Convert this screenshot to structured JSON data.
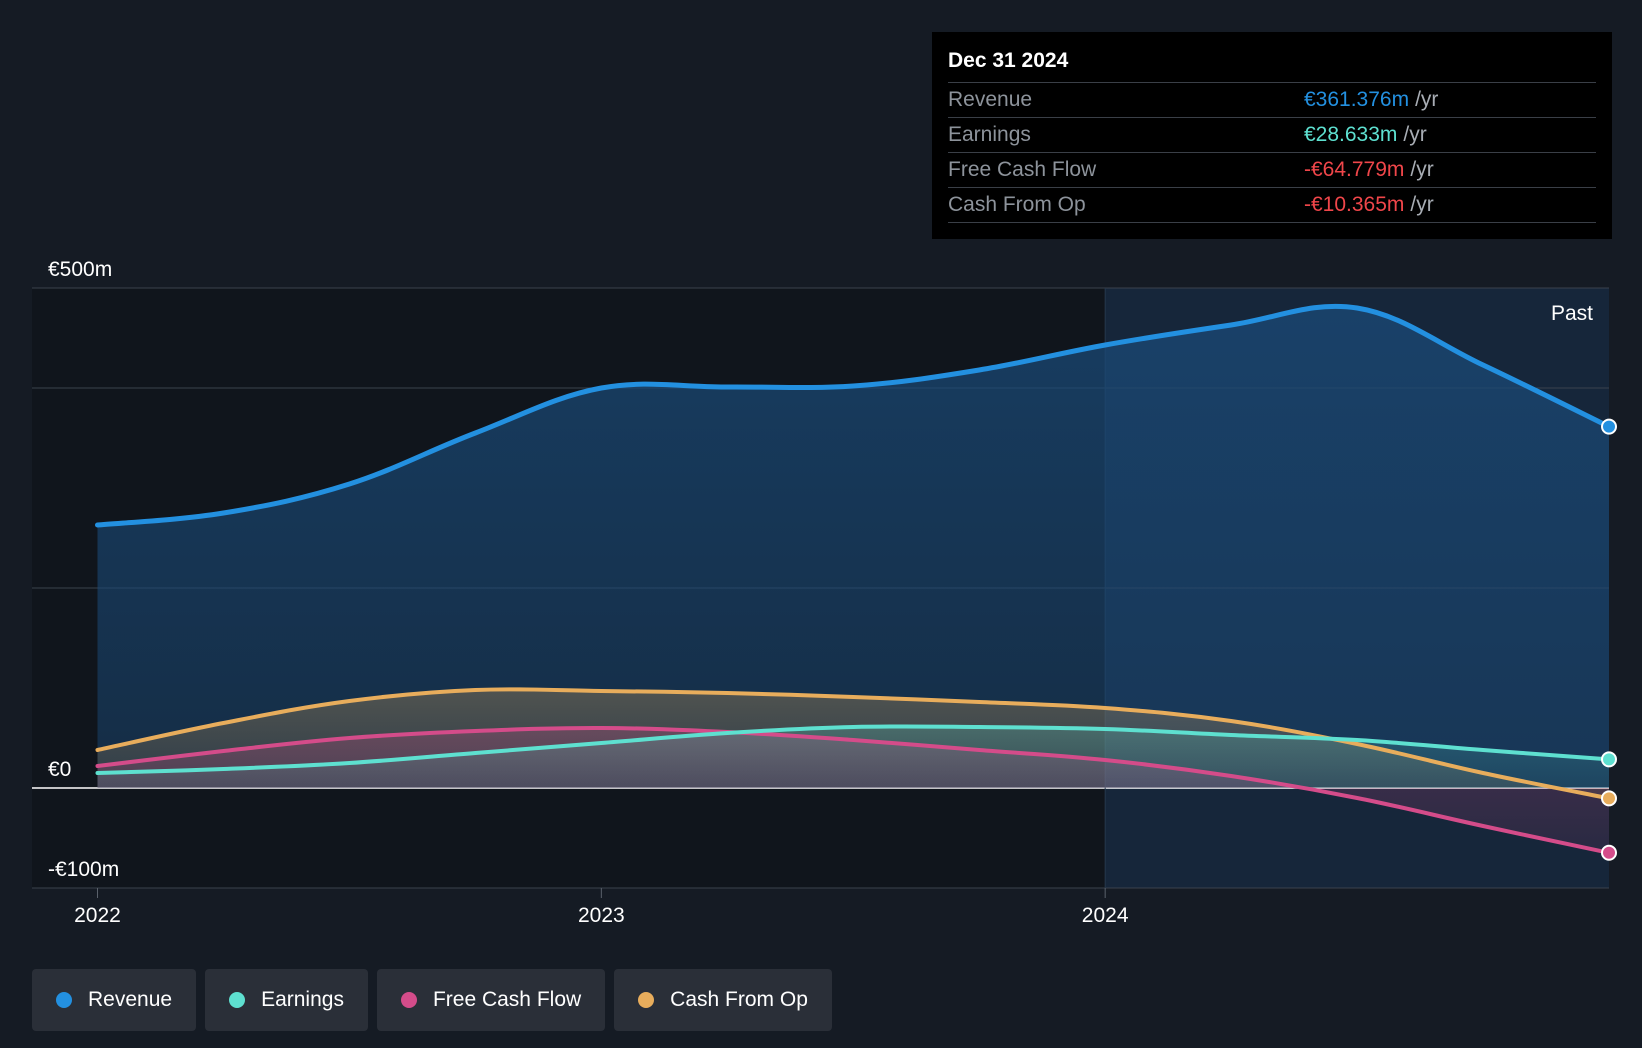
{
  "colors": {
    "revenue": "#2390e0",
    "earnings": "#5ee0d0",
    "fcf": "#d44c8a",
    "cfo": "#e8ad5c",
    "negative": "#f0464a",
    "background": "#151b24",
    "past_shade": "#16283e"
  },
  "tooltip": {
    "date": "Dec 31 2024",
    "rows": [
      {
        "label": "Revenue",
        "value": "€361.376m",
        "unit": "/yr",
        "color": "#2390e0"
      },
      {
        "label": "Earnings",
        "value": "€28.633m",
        "unit": "/yr",
        "color": "#5ee0d0"
      },
      {
        "label": "Free Cash Flow",
        "value": "-€64.779m",
        "unit": "/yr",
        "color": "#f0464a"
      },
      {
        "label": "Cash From Op",
        "value": "-€10.365m",
        "unit": "/yr",
        "color": "#f0464a"
      }
    ]
  },
  "legend": [
    {
      "label": "Revenue",
      "color": "#2390e0"
    },
    {
      "label": "Earnings",
      "color": "#5ee0d0"
    },
    {
      "label": "Free Cash Flow",
      "color": "#d44c8a"
    },
    {
      "label": "Cash From Op",
      "color": "#e8ad5c"
    }
  ],
  "chart_data": {
    "type": "area",
    "title": "",
    "xlabel": "",
    "ylabel": "",
    "unit": "€m",
    "x_ticks": [
      {
        "label": "2022",
        "value": 2022.0
      },
      {
        "label": "2023",
        "value": 2023.0
      },
      {
        "label": "2024",
        "value": 2024.0
      }
    ],
    "y_ticks": [
      {
        "label": "€500m",
        "value": 500
      },
      {
        "label": "€0",
        "value": 0
      },
      {
        "label": "-€100m",
        "value": -100
      }
    ],
    "ylim": [
      -100,
      500
    ],
    "xlim": [
      2021.87,
      2025.0
    ],
    "gridlines_y": [
      500,
      400,
      200,
      0,
      -100
    ],
    "past_region_start": 2024.0,
    "past_label": "Past",
    "series": [
      {
        "name": "Revenue",
        "key": "revenue",
        "points": [
          [
            2022.0,
            263
          ],
          [
            2022.25,
            275
          ],
          [
            2022.5,
            304
          ],
          [
            2022.75,
            355
          ],
          [
            2023.0,
            400
          ],
          [
            2023.25,
            401
          ],
          [
            2023.5,
            402
          ],
          [
            2023.75,
            418
          ],
          [
            2024.0,
            443
          ],
          [
            2024.25,
            463
          ],
          [
            2024.5,
            480
          ],
          [
            2024.75,
            423
          ],
          [
            2025.0,
            361.376
          ]
        ]
      },
      {
        "name": "Earnings",
        "key": "earnings",
        "points": [
          [
            2022.0,
            15
          ],
          [
            2022.25,
            19
          ],
          [
            2022.5,
            25
          ],
          [
            2022.75,
            35
          ],
          [
            2023.0,
            45
          ],
          [
            2023.25,
            55
          ],
          [
            2023.5,
            61
          ],
          [
            2023.75,
            61
          ],
          [
            2024.0,
            59
          ],
          [
            2024.25,
            53
          ],
          [
            2024.5,
            48
          ],
          [
            2024.75,
            38
          ],
          [
            2025.0,
            28.633
          ]
        ]
      },
      {
        "name": "Free Cash Flow",
        "key": "fcf",
        "points": [
          [
            2022.0,
            22
          ],
          [
            2022.25,
            37
          ],
          [
            2022.5,
            50
          ],
          [
            2022.75,
            57
          ],
          [
            2023.0,
            60
          ],
          [
            2023.25,
            56
          ],
          [
            2023.5,
            48
          ],
          [
            2023.75,
            38
          ],
          [
            2024.0,
            28
          ],
          [
            2024.25,
            12
          ],
          [
            2024.5,
            -10
          ],
          [
            2024.75,
            -38
          ],
          [
            2025.0,
            -64.779
          ]
        ]
      },
      {
        "name": "Cash From Op",
        "key": "cfo",
        "points": [
          [
            2022.0,
            38
          ],
          [
            2022.25,
            65
          ],
          [
            2022.5,
            87
          ],
          [
            2022.75,
            98
          ],
          [
            2023.0,
            97
          ],
          [
            2023.25,
            95
          ],
          [
            2023.5,
            91
          ],
          [
            2023.75,
            86
          ],
          [
            2024.0,
            80
          ],
          [
            2024.25,
            67
          ],
          [
            2024.5,
            44
          ],
          [
            2024.75,
            15
          ],
          [
            2025.0,
            -10.365
          ]
        ]
      }
    ]
  }
}
